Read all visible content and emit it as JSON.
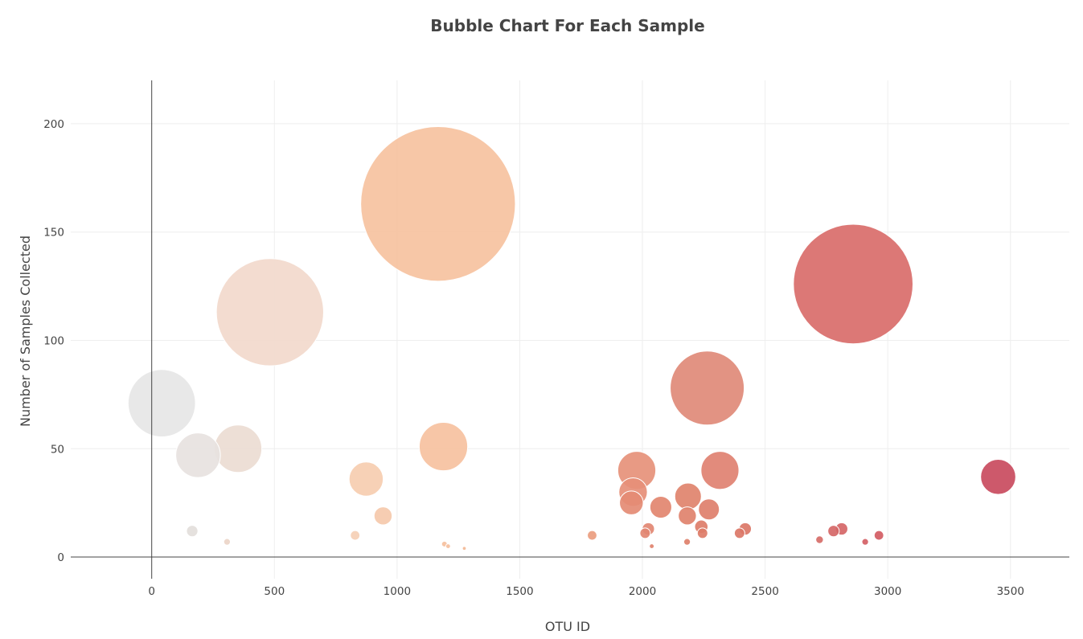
{
  "chart_data": {
    "type": "scatter",
    "subtype": "bubble",
    "title": "Bubble Chart For Each Sample",
    "xlabel": "OTU ID",
    "ylabel": "Number of Samples Collected",
    "xlim": [
      -330,
      3740
    ],
    "ylim": [
      -10,
      220
    ],
    "xticks": [
      0,
      500,
      1000,
      1500,
      2000,
      2500,
      3000,
      3500
    ],
    "yticks": [
      0,
      50,
      100,
      150,
      200
    ],
    "grid": true,
    "legend": "none",
    "colorscale": "light-grey to peach to red by OTU ID",
    "points": [
      {
        "x": 41,
        "y": 71,
        "color": "#e6e6e6"
      },
      {
        "x": 189,
        "y": 47,
        "color": "#e7e2df"
      },
      {
        "x": 352,
        "y": 50,
        "color": "#ecdcd3"
      },
      {
        "x": 482,
        "y": 113,
        "color": "#f2d9cc"
      },
      {
        "x": 165,
        "y": 12,
        "color": "#e3dedb"
      },
      {
        "x": 307,
        "y": 7,
        "color": "#ecd5c8"
      },
      {
        "x": 829,
        "y": 10,
        "color": "#f5cfb5"
      },
      {
        "x": 874,
        "y": 36,
        "color": "#f6cdb0"
      },
      {
        "x": 943,
        "y": 19,
        "color": "#f5c9ab"
      },
      {
        "x": 1167,
        "y": 163,
        "color": "#f6c2a0"
      },
      {
        "x": 1189,
        "y": 51,
        "color": "#f6c19f"
      },
      {
        "x": 1193,
        "y": 6,
        "color": "#f5c09e"
      },
      {
        "x": 1208,
        "y": 5,
        "color": "#f5bf9d"
      },
      {
        "x": 1274,
        "y": 4,
        "color": "#f3b995"
      },
      {
        "x": 1795,
        "y": 10,
        "color": "#ea9d7f"
      },
      {
        "x": 1977,
        "y": 40,
        "color": "#e6917a"
      },
      {
        "x": 1962,
        "y": 30,
        "color": "#e68f78"
      },
      {
        "x": 1955,
        "y": 25,
        "color": "#e48b74"
      },
      {
        "x": 2024,
        "y": 13,
        "color": "#e28772"
      },
      {
        "x": 2011,
        "y": 11,
        "color": "#e28772"
      },
      {
        "x": 2075,
        "y": 23,
        "color": "#e2866f"
      },
      {
        "x": 2038,
        "y": 5,
        "color": "#e0826c"
      },
      {
        "x": 2186,
        "y": 28,
        "color": "#df836d"
      },
      {
        "x": 2183,
        "y": 19,
        "color": "#df826c"
      },
      {
        "x": 2182,
        "y": 7,
        "color": "#de806a"
      },
      {
        "x": 2264,
        "y": 78,
        "color": "#e08a78"
      },
      {
        "x": 2271,
        "y": 22,
        "color": "#de7f6b"
      },
      {
        "x": 2316,
        "y": 40,
        "color": "#df8171"
      },
      {
        "x": 2240,
        "y": 14,
        "color": "#dd7d69"
      },
      {
        "x": 2245,
        "y": 11,
        "color": "#dd7c68"
      },
      {
        "x": 2419,
        "y": 13,
        "color": "#db7767"
      },
      {
        "x": 2396,
        "y": 11,
        "color": "#db7767"
      },
      {
        "x": 2859,
        "y": 126,
        "color": "#d96d6a"
      },
      {
        "x": 2722,
        "y": 8,
        "color": "#d66c68"
      },
      {
        "x": 2779,
        "y": 12,
        "color": "#d56767"
      },
      {
        "x": 2812,
        "y": 13,
        "color": "#d56667"
      },
      {
        "x": 2908,
        "y": 7,
        "color": "#d46065"
      },
      {
        "x": 2964,
        "y": 10,
        "color": "#d35c63"
      },
      {
        "x": 3450,
        "y": 37,
        "color": "#c94b5e"
      }
    ]
  }
}
